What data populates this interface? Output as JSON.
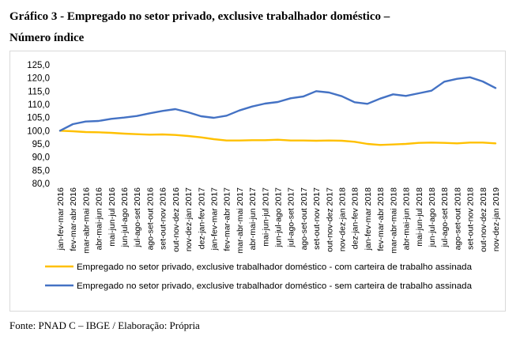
{
  "title_line1": "Gráfico 3 - Empregado no setor privado, exclusive trabalhador doméstico –",
  "title_line2": "Número índice",
  "source": "Fonte: PNAD C – IBGE / Elaboração: Própria",
  "chart_data": {
    "type": "line",
    "ylim": [
      80,
      125
    ],
    "yticks": [
      "80,0",
      "85,0",
      "90,0",
      "95,0",
      "100,0",
      "105,0",
      "110,0",
      "115,0",
      "120,0",
      "125,0"
    ],
    "grid": true,
    "legend_position": "bottom",
    "categories": [
      "jan-fev-mar 2016",
      "fev-mar-abr 2016",
      "mar-abr-mai 2016",
      "abr-mai-jun 2016",
      "mai-jun-jul 2016",
      "jun-jul-ago 2016",
      "jul-ago-set 2016",
      "ago-set-out 2016",
      "set-out-nov 2016",
      "out-nov-dez 2016",
      "nov-dez-jan 2017",
      "dez-jan-fev 2017",
      "jan-fev-mar 2017",
      "fev-mar-abr 2017",
      "mar-abr-mai 2017",
      "abr-mai-jun 2017",
      "mai-jun-jul 2017",
      "jun-jul-ago 2017",
      "jul-ago-set 2017",
      "ago-set-out 2017",
      "set-out-nov 2017",
      "out-nov-dez 2017",
      "nov-dez-jan 2018",
      "dez-jan-fev 2018",
      "jan-fev-mar 2018",
      "fev-mar-abr 2018",
      "mar-abr-mai 2018",
      "abr-mai-jun 2018",
      "mai-jun-jul 2018",
      "jun-jul-ago 2018",
      "jul-ago-set 2018",
      "ago-set-out 2018",
      "set-out-nov 2018",
      "out-nov-dez 2018",
      "nov-dez-jan 2019"
    ],
    "series": [
      {
        "name": "Empregado no setor privado, exclusive trabalhador doméstico - com carteira de trabalho assinada",
        "color": "#ffc000",
        "values": [
          100.0,
          99.8,
          99.5,
          99.4,
          99.2,
          98.9,
          98.7,
          98.5,
          98.6,
          98.4,
          98.0,
          97.5,
          96.8,
          96.3,
          96.3,
          96.4,
          96.4,
          96.6,
          96.3,
          96.3,
          96.2,
          96.3,
          96.2,
          95.8,
          95.0,
          94.6,
          94.8,
          95.0,
          95.4,
          95.5,
          95.4,
          95.2,
          95.5,
          95.5,
          95.2
        ]
      },
      {
        "name": "Empregado no setor privado, exclusive trabalhador doméstico - sem carteira de trabalho assinada",
        "color": "#4472c4",
        "values": [
          100.0,
          102.5,
          103.5,
          103.7,
          104.5,
          105.0,
          105.6,
          106.6,
          107.5,
          108.2,
          107.0,
          105.5,
          104.9,
          105.7,
          107.7,
          109.2,
          110.3,
          110.9,
          112.3,
          113.0,
          115.0,
          114.5,
          113.1,
          110.8,
          110.2,
          112.2,
          113.8,
          113.2,
          114.2,
          115.2,
          118.6,
          119.7,
          120.3,
          118.7,
          116.2
        ]
      }
    ]
  }
}
